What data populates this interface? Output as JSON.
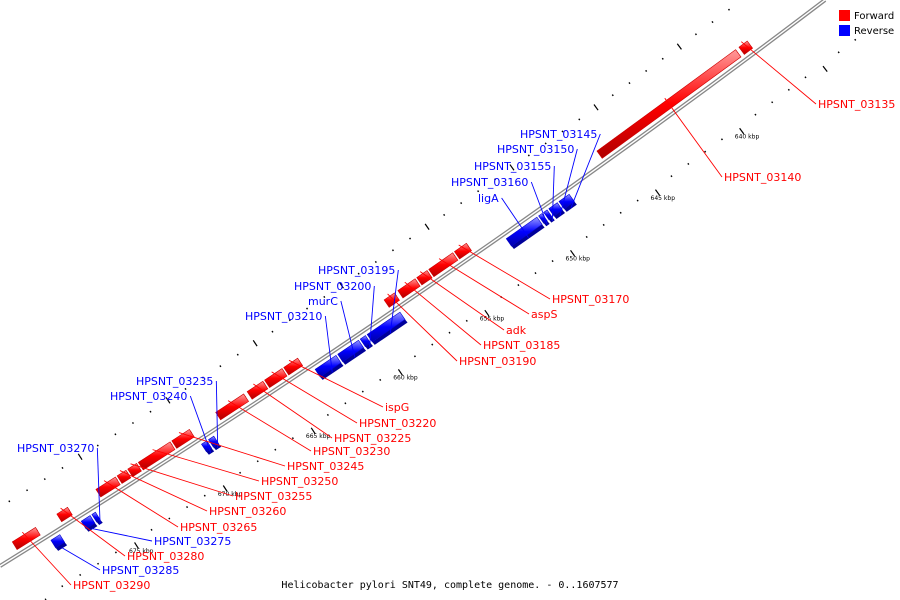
{
  "caption": "Helicobacter pylori SNT49, complete genome. - 0..1607577",
  "legend": [
    {
      "label": "Forward",
      "color": "#ff0000"
    },
    {
      "label": "Reverse",
      "color": "#0000ff"
    }
  ],
  "colors": {
    "forward": "#ff0000",
    "reverse": "#0000ff",
    "backbone": "#888888"
  },
  "ticks": [
    {
      "kbp": 640,
      "label": "640 kbp"
    },
    {
      "kbp": 645,
      "label": "645 kbp"
    },
    {
      "kbp": 650,
      "label": "650 kbp"
    },
    {
      "kbp": 655,
      "label": "655 kbp"
    },
    {
      "kbp": 660,
      "label": "660 kbp"
    },
    {
      "kbp": 665,
      "label": "665 kbp"
    },
    {
      "kbp": 670,
      "label": "670 kbp"
    },
    {
      "kbp": 675,
      "label": "675 kbp"
    }
  ],
  "genes": [
    {
      "name": "HPSNT_03135",
      "strand": "forward",
      "start_kbp": 637.2,
      "end_kbp": 637.7
    },
    {
      "name": "HPSNT_03140",
      "strand": "forward",
      "start_kbp": 637.9,
      "end_kbp": 646.2
    },
    {
      "name": "HPSNT_03145",
      "strand": "reverse",
      "start_kbp": 648.5,
      "end_kbp": 649.1
    },
    {
      "name": "HPSNT_03150",
      "strand": "reverse",
      "start_kbp": 649.2,
      "end_kbp": 649.7
    },
    {
      "name": "HPSNT_03155",
      "strand": "reverse",
      "start_kbp": 649.8,
      "end_kbp": 650.0
    },
    {
      "name": "HPSNT_03160",
      "strand": "reverse",
      "start_kbp": 650.1,
      "end_kbp": 650.3
    },
    {
      "name": "ligA",
      "strand": "reverse",
      "start_kbp": 650.4,
      "end_kbp": 652.2
    },
    {
      "name": "HPSNT_03170",
      "strand": "forward",
      "start_kbp": 653.9,
      "end_kbp": 654.6
    },
    {
      "name": "aspS",
      "strand": "forward",
      "start_kbp": 654.7,
      "end_kbp": 656.1
    },
    {
      "name": "adk",
      "strand": "forward",
      "start_kbp": 656.2,
      "end_kbp": 656.8
    },
    {
      "name": "HPSNT_03185",
      "strand": "forward",
      "start_kbp": 656.9,
      "end_kbp": 657.9
    },
    {
      "name": "HPSNT_03190",
      "strand": "forward",
      "start_kbp": 658.1,
      "end_kbp": 658.7
    },
    {
      "name": "HPSNT_03195",
      "strand": "reverse",
      "start_kbp": 658.4,
      "end_kbp": 660.3
    },
    {
      "name": "HPSNT_03200",
      "strand": "reverse",
      "start_kbp": 660.4,
      "end_kbp": 660.7
    },
    {
      "name": "murC",
      "strand": "reverse",
      "start_kbp": 660.8,
      "end_kbp": 662.0
    },
    {
      "name": "HPSNT_03210",
      "strand": "reverse",
      "start_kbp": 662.1,
      "end_kbp": 663.3
    },
    {
      "name": "ispG",
      "strand": "forward",
      "start_kbp": 663.7,
      "end_kbp": 664.5
    },
    {
      "name": "HPSNT_03220",
      "strand": "forward",
      "start_kbp": 664.6,
      "end_kbp": 665.6
    },
    {
      "name": "HPSNT_03225",
      "strand": "forward",
      "start_kbp": 665.7,
      "end_kbp": 666.6
    },
    {
      "name": "HPSNT_03230",
      "strand": "forward",
      "start_kbp": 666.8,
      "end_kbp": 668.4
    },
    {
      "name": "HPSNT_03235",
      "strand": "reverse",
      "start_kbp": 669.1,
      "end_kbp": 669.4
    },
    {
      "name": "HPSNT_03240",
      "strand": "reverse",
      "start_kbp": 669.5,
      "end_kbp": 669.8
    },
    {
      "name": "HPSNT_03245",
      "strand": "forward",
      "start_kbp": 669.9,
      "end_kbp": 670.9
    },
    {
      "name": "HPSNT_03250",
      "strand": "forward",
      "start_kbp": 671.0,
      "end_kbp": 672.8
    },
    {
      "name": "HPSNT_03255",
      "strand": "forward",
      "start_kbp": 672.9,
      "end_kbp": 673.4
    },
    {
      "name": "HPSNT_03260",
      "strand": "forward",
      "start_kbp": 673.5,
      "end_kbp": 674.0
    },
    {
      "name": "HPSNT_03265",
      "strand": "forward",
      "start_kbp": 674.1,
      "end_kbp": 675.2
    },
    {
      "name": "HPSNT_03270",
      "strand": "reverse",
      "start_kbp": 675.8,
      "end_kbp": 676.0
    },
    {
      "name": "HPSNT_03275",
      "strand": "reverse",
      "start_kbp": 676.1,
      "end_kbp": 676.6
    },
    {
      "name": "HPSNT_03280",
      "strand": "forward",
      "start_kbp": 676.8,
      "end_kbp": 677.4
    },
    {
      "name": "HPSNT_03285",
      "strand": "reverse",
      "start_kbp": 677.8,
      "end_kbp": 678.3
    },
    {
      "name": "HPSNT_03290",
      "strand": "forward",
      "start_kbp": 678.6,
      "end_kbp": 679.9
    }
  ]
}
